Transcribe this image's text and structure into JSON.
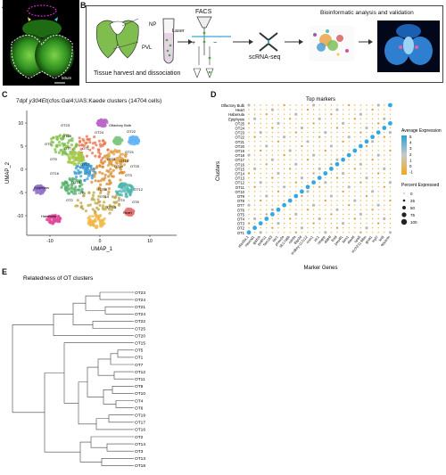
{
  "panels": {
    "a": "A",
    "b": "B",
    "c": "C",
    "d": "D",
    "e": "E"
  },
  "panel_a": {
    "scale_bar": "50um"
  },
  "panel_b": {
    "np": "NP",
    "pvl": "PVL",
    "tissue": "Tissue harvest and dissociation",
    "facs": "FACS",
    "laser": "Laser",
    "plus": "+",
    "minus": "−",
    "scrna": "scRNA-seq",
    "bioinf": "Bioinformatic analysis and validation"
  },
  "panel_c": {
    "title_pre": "7dpf ",
    "title_italic": "y304Et",
    "title_post": "(cfos:Gal4;UAS:Kaede clusters (14704 cells)",
    "xlabel": "UMAP_1",
    "ylabel": "UMAP_2",
    "xticks": [
      "-10",
      "0",
      "10"
    ],
    "yticks": [
      "10",
      "5",
      "0",
      "-5",
      "-10"
    ],
    "labels": [
      "OT23",
      "Olfactory Bulb",
      "OT24",
      "OT22",
      "OT25",
      "OT5",
      "OT7",
      "OT1",
      "OT9",
      "OT11",
      "OT19",
      "OT16",
      "OT21",
      "OT15",
      "OT17",
      "OT3",
      "OT10",
      "OT12",
      "OT18",
      "OT14",
      "OT4",
      "OT2",
      "OT8",
      "OT6",
      "OT13",
      "OT20",
      "Epiphysis",
      "Habenula",
      "Heart"
    ]
  },
  "panel_d": {
    "title": "Top markers",
    "xlabel": "Marker Genes",
    "ylabel": "Clusters",
    "rows": [
      "Olfactory Bulb",
      "Heart",
      "Habenula",
      "Epiphysis",
      "OT25",
      "OT24",
      "OT23",
      "OT22",
      "OT21",
      "OT20",
      "OT19",
      "OT18",
      "OT17",
      "OT16",
      "OT15",
      "OT14",
      "OT13",
      "OT12",
      "OT11",
      "OT10",
      "OT9",
      "OT8",
      "OT7",
      "OT6",
      "OT5",
      "OT4",
      "OT3",
      "OT2",
      "OT1"
    ],
    "genes": [
      "elavl3a.1",
      "neurod1",
      "gad1b",
      "pcdh11",
      "fam163",
      "tac1",
      "phox2a",
      "slc17a6b",
      "ndnfa",
      "tfap2d",
      "si:dkey-117c12",
      "nrxn1",
      "zic1",
      "rasgrp",
      "ddit4l",
      "lhx9",
      "pou4f1",
      "kiss1",
      "elavl4",
      "cpa5",
      "si:ch211-68m",
      "gnat1",
      "myl7",
      "krt5",
      "epyanin"
    ],
    "legend_expr_title": "Average Expression",
    "legend_expr_ticks": [
      "5",
      "4",
      "3",
      "2",
      "1",
      "0",
      "-1"
    ],
    "legend_pct_title": "Percent Expressed",
    "legend_pct_ticks": [
      "0",
      "25",
      "50",
      "75",
      "100"
    ]
  },
  "panel_e": {
    "title": "Relatedness of OT clusters",
    "leaves": [
      "OT23",
      "OT24",
      "OT21",
      "OT24",
      "OT22",
      "OT25",
      "OT20",
      "OT15",
      "OT5",
      "OT1",
      "OT7",
      "OT12",
      "OT11",
      "OT9",
      "OT10",
      "OT4",
      "OT6",
      "OT19",
      "OT17",
      "OT16",
      "OT2",
      "OT14",
      "OT3",
      "OT13",
      "OT18"
    ]
  }
}
